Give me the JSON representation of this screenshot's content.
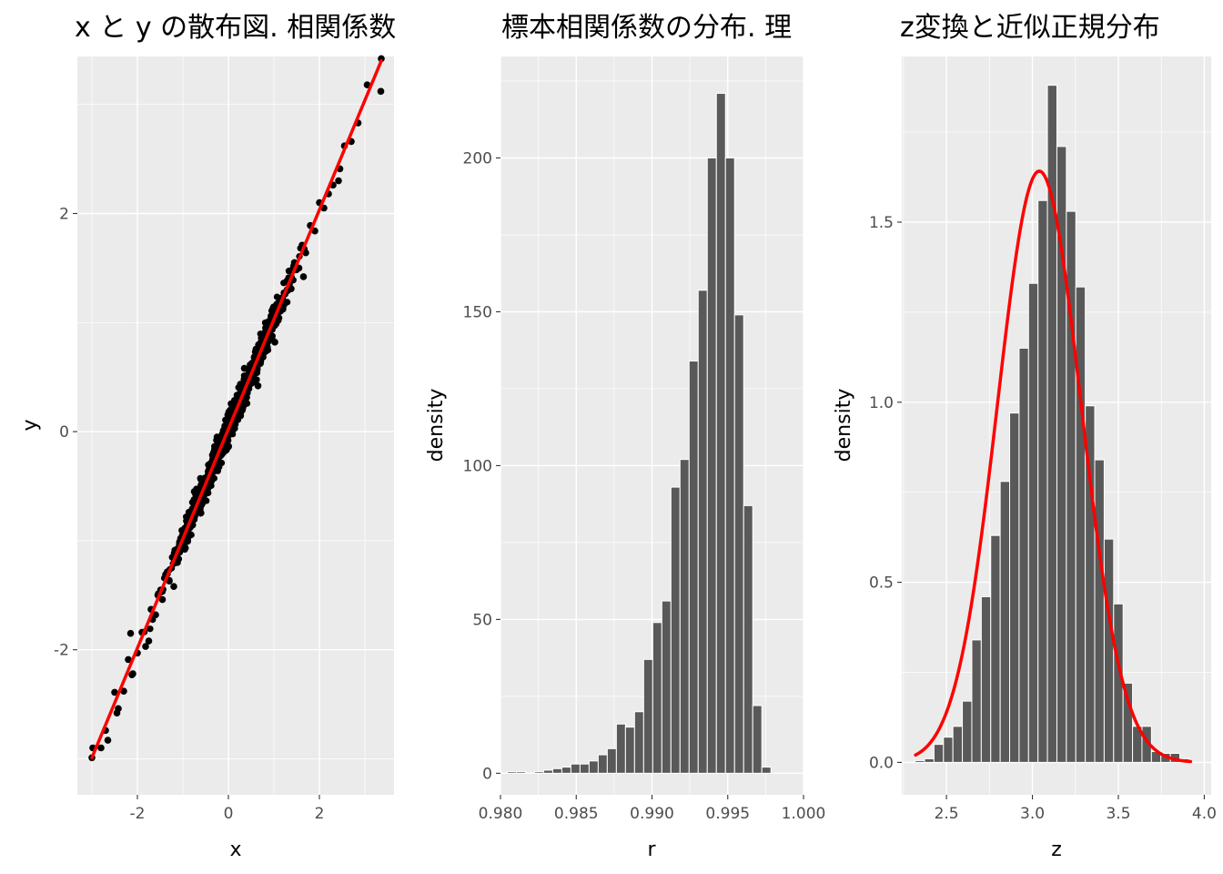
{
  "chart_data": [
    {
      "type": "scatter",
      "title": "x と y の散布図. 相関係数",
      "xlabel": "x",
      "ylabel": "y",
      "xlim": [
        -3.32,
        3.64
      ],
      "ylim": [
        -3.33,
        3.44
      ],
      "x_ticks": [
        -2,
        0,
        2
      ],
      "x_tick_labels": [
        "-2",
        "0",
        "2"
      ],
      "y_ticks": [
        -2,
        0,
        2
      ],
      "y_tick_labels": [
        "-2",
        "0",
        "2"
      ],
      "grid": true,
      "point_color": "#000000",
      "points": [
        [
          -3.0,
          -2.99
        ],
        [
          -2.98,
          -2.9
        ],
        [
          -2.8,
          -2.9
        ],
        [
          -2.7,
          -2.74
        ],
        [
          -2.65,
          -2.83
        ],
        [
          -2.5,
          -2.39
        ],
        [
          -2.42,
          -2.54
        ],
        [
          -2.3,
          -2.38
        ],
        [
          -2.2,
          -2.09
        ],
        [
          -2.12,
          -2.23
        ],
        [
          -2.0,
          -2.03
        ],
        [
          -1.9,
          -1.84
        ],
        [
          -1.82,
          -1.97
        ],
        [
          -1.7,
          -1.63
        ],
        [
          -1.6,
          -1.68
        ],
        [
          -1.55,
          -1.5
        ],
        [
          -1.45,
          -1.54
        ],
        [
          -1.38,
          -1.31
        ],
        [
          -1.3,
          -1.37
        ],
        [
          -1.2,
          -1.16
        ],
        [
          -1.12,
          -1.2
        ],
        [
          -1.05,
          -0.98
        ],
        [
          -0.95,
          -1.02
        ],
        [
          -0.88,
          -0.83
        ],
        [
          -0.8,
          -0.86
        ],
        [
          -0.7,
          -0.65
        ],
        [
          -0.62,
          -0.71
        ],
        [
          -0.55,
          -0.5
        ],
        [
          -0.45,
          -0.52
        ],
        [
          -0.38,
          -0.32
        ],
        [
          -0.3,
          -0.36
        ],
        [
          -0.2,
          -0.16
        ],
        [
          -0.12,
          -0.18
        ],
        [
          -0.05,
          0.02
        ],
        [
          0.05,
          -0.02
        ],
        [
          0.12,
          0.17
        ],
        [
          0.2,
          0.14
        ],
        [
          0.3,
          0.36
        ],
        [
          0.38,
          0.31
        ],
        [
          0.45,
          0.52
        ],
        [
          0.55,
          0.5
        ],
        [
          0.62,
          0.69
        ],
        [
          0.7,
          0.64
        ],
        [
          0.8,
          0.87
        ],
        [
          0.88,
          0.83
        ],
        [
          0.95,
          1.03
        ],
        [
          1.05,
          0.99
        ],
        [
          1.12,
          1.19
        ],
        [
          1.2,
          1.13
        ],
        [
          1.3,
          1.37
        ],
        [
          1.38,
          1.31
        ],
        [
          1.45,
          1.55
        ],
        [
          1.55,
          1.5
        ],
        [
          1.62,
          1.71
        ],
        [
          1.7,
          1.64
        ],
        [
          1.8,
          1.89
        ],
        [
          1.9,
          1.84
        ],
        [
          2.0,
          2.1
        ],
        [
          2.1,
          2.05
        ],
        [
          2.2,
          2.18
        ],
        [
          2.3,
          2.26
        ],
        [
          2.45,
          2.41
        ],
        [
          2.55,
          2.62
        ],
        [
          2.7,
          2.66
        ],
        [
          2.85,
          2.83
        ],
        [
          3.05,
          3.18
        ],
        [
          3.36,
          3.42
        ],
        [
          3.35,
          3.12
        ],
        [
          2.42,
          2.3
        ],
        [
          1.02,
          0.82
        ],
        [
          -0.25,
          -0.05
        ],
        [
          0.35,
          0.58
        ],
        [
          -1.2,
          -1.42
        ],
        [
          -2.1,
          -2.22
        ],
        [
          -2.45,
          -2.58
        ],
        [
          -2.15,
          -1.85
        ],
        [
          0.65,
          0.42
        ],
        [
          -0.75,
          -0.55
        ],
        [
          1.65,
          1.42
        ],
        [
          -1.75,
          -1.92
        ]
      ],
      "fit_line": {
        "x": [
          -3.0,
          3.36
        ],
        "y": [
          -2.99,
          3.4
        ],
        "color": "#ff0000"
      }
    },
    {
      "type": "bar",
      "title": "標本相関係数の分布. 理",
      "xlabel": "r",
      "ylabel": "density",
      "xlim": [
        0.98,
        1.0
      ],
      "ylim": [
        -7,
        233
      ],
      "x_ticks": [
        0.98,
        0.985,
        0.99,
        0.995,
        1.0
      ],
      "x_tick_labels": [
        "0.980",
        "0.985",
        "0.990",
        "0.995",
        "1.000"
      ],
      "y_ticks": [
        0,
        50,
        100,
        150,
        200
      ],
      "y_tick_labels": [
        "0",
        "50",
        "100",
        "150",
        "200"
      ],
      "grid": true,
      "bar_color": "#595959",
      "bin_edges": [
        0.98045,
        0.98105,
        0.98165,
        0.98225,
        0.98285,
        0.98345,
        0.98405,
        0.98465,
        0.98525,
        0.98585,
        0.98645,
        0.98705,
        0.98765,
        0.98825,
        0.98885,
        0.98945,
        0.99005,
        0.99065,
        0.99125,
        0.99185,
        0.99245,
        0.99305,
        0.99365,
        0.99425,
        0.99485,
        0.99545,
        0.99605,
        0.99665,
        0.99725,
        0.99785,
        0.99845
      ],
      "values": [
        0.5,
        0.5,
        0,
        0.5,
        1,
        1.5,
        2,
        3,
        3,
        4,
        6,
        8,
        16,
        15,
        20,
        37,
        49,
        56,
        93,
        102,
        134,
        157,
        200,
        221,
        200,
        149,
        87,
        22,
        2,
        0
      ]
    },
    {
      "type": "bar",
      "title": "z変換と近似正規分布",
      "xlabel": "z",
      "ylabel": "density",
      "xlim": [
        2.24,
        4.04
      ],
      "ylim": [
        -0.09,
        1.96
      ],
      "x_ticks": [
        2.5,
        3.0,
        3.5,
        4.0
      ],
      "x_tick_labels": [
        "2.5",
        "3.0",
        "3.5",
        "4.0"
      ],
      "y_ticks": [
        0.0,
        0.5,
        1.0,
        1.5
      ],
      "y_tick_labels": [
        "0.0",
        "0.5",
        "1.0",
        "1.5"
      ],
      "grid": true,
      "bar_color": "#595959",
      "bin_edges": [
        2.3175,
        2.3725,
        2.4275,
        2.4825,
        2.5375,
        2.5925,
        2.6475,
        2.7025,
        2.7575,
        2.8125,
        2.8675,
        2.9225,
        2.9775,
        3.0325,
        3.0875,
        3.1425,
        3.1975,
        3.2525,
        3.3075,
        3.3625,
        3.4175,
        3.4725,
        3.5275,
        3.5825,
        3.6375,
        3.6925,
        3.7475,
        3.8025,
        3.8575,
        3.9125
      ],
      "values": [
        0.005,
        0.01,
        0.05,
        0.07,
        0.1,
        0.17,
        0.34,
        0.46,
        0.63,
        0.78,
        0.97,
        1.15,
        1.33,
        1.56,
        1.88,
        1.71,
        1.53,
        1.32,
        0.99,
        0.84,
        0.62,
        0.44,
        0.22,
        0.1,
        0.1,
        0.03,
        0.025,
        0.025,
        0.01
      ],
      "normal_curve": {
        "mean": 3.04,
        "sd": 0.243,
        "color": "#ff0000",
        "x_from": 2.32,
        "x_to": 3.92
      }
    }
  ]
}
